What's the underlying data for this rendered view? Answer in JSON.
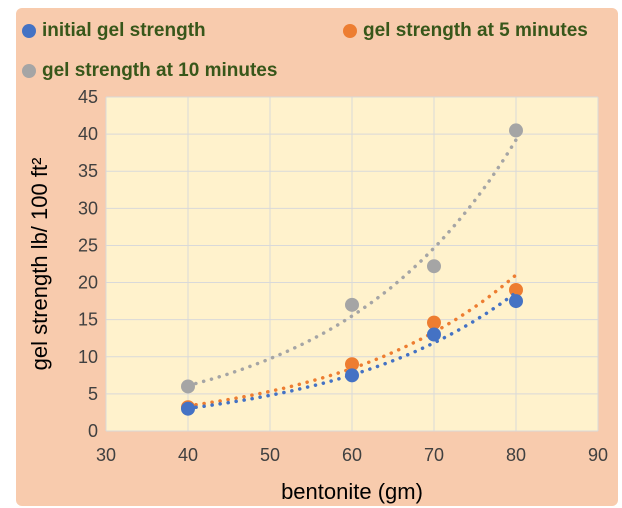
{
  "colors": {
    "frame_background": "#f8cbad",
    "plot_background": "#fff2cc",
    "initial": "#4472c4",
    "five_minutes": "#ed7d31",
    "ten_minutes": "#a5a5a5",
    "legend_text": "#38571a"
  },
  "chart_data": {
    "type": "scatter",
    "title": "",
    "xlabel": "bentonite (gm)",
    "ylabel": "gel strength lb/ 100 ft²",
    "xlim": [
      30,
      90
    ],
    "ylim": [
      0,
      45
    ],
    "x_ticks": [
      30,
      40,
      50,
      60,
      70,
      80,
      90
    ],
    "y_ticks": [
      0,
      5,
      10,
      15,
      20,
      25,
      30,
      35,
      40,
      45
    ],
    "grid": true,
    "legend_position": "top",
    "trendline": "exponential dotted",
    "series": [
      {
        "name": "initial gel strength",
        "x": [
          40,
          60,
          70,
          80
        ],
        "y": [
          3,
          7.5,
          13,
          17.5
        ]
      },
      {
        "name": "gel strength at 5 minutes",
        "x": [
          40,
          60,
          70,
          80
        ],
        "y": [
          3.2,
          9,
          14.6,
          19
        ]
      },
      {
        "name": "gel strength at 10  minutes",
        "x": [
          40,
          60,
          70,
          80
        ],
        "y": [
          6,
          17,
          22.2,
          40.5
        ]
      }
    ]
  }
}
